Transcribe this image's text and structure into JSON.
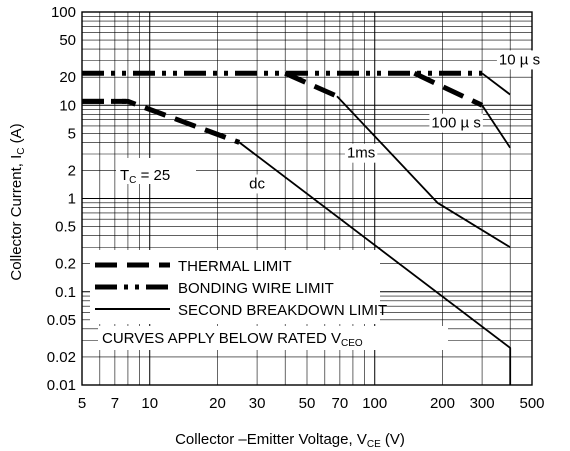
{
  "chart_data": {
    "type": "line",
    "xscale": "log",
    "yscale": "log",
    "xlim": [
      5,
      500
    ],
    "ylim": [
      0.01,
      100
    ],
    "xlabel": {
      "main": "Collector –Emitter Voltage, V",
      "sub": "CE",
      "unit": " (V)"
    },
    "ylabel": {
      "main": "Collector Current, I",
      "sub": "C",
      "unit": " (A)"
    },
    "x_ticks": [
      5,
      7,
      10,
      20,
      30,
      50,
      70,
      100,
      200,
      300,
      500
    ],
    "x_tick_labels": [
      "5",
      "7",
      "10",
      "20",
      "30",
      "50",
      "70",
      "100",
      "200",
      "300",
      "500"
    ],
    "y_ticks": [
      100,
      50,
      20,
      10,
      5,
      2,
      1,
      0.5,
      0.2,
      0.1,
      0.05,
      0.02,
      0.01
    ],
    "y_tick_labels": [
      "100",
      "50",
      "20",
      "10",
      "5",
      "2",
      "1",
      "0.5",
      "0.2",
      "0.1",
      "0.05",
      "0.02",
      "0.01"
    ],
    "grid": true,
    "series": [
      {
        "name": "THERMAL LIMIT",
        "style": "dashed",
        "segments": [
          {
            "x": [
              5,
              8,
              25
            ],
            "y": [
              11,
              11,
              4
            ]
          },
          {
            "x": [
              40,
              68
            ],
            "y": [
              22,
              12.5
            ]
          },
          {
            "x": [
              150,
              300
            ],
            "y": [
              22,
              10
            ]
          }
        ]
      },
      {
        "name": "BONDING WIRE LIMIT",
        "style": "dash-dot-dot",
        "segments": [
          {
            "x": [
              5,
              8
            ],
            "y": [
              11,
              11
            ]
          },
          {
            "x": [
              5,
              300
            ],
            "y": [
              22,
              22
            ]
          }
        ]
      },
      {
        "name": "SECOND BREAKDOWN LIMIT",
        "style": "solid",
        "segments": [
          {
            "x": [
              25,
              400,
              400
            ],
            "y": [
              4,
              0.025,
              0.01
            ]
          },
          {
            "x": [
              68,
              190,
              400
            ],
            "y": [
              12.5,
              0.9,
              0.3
            ]
          },
          {
            "x": [
              300,
              400
            ],
            "y": [
              10,
              3.5
            ]
          },
          {
            "x": [
              300,
              400
            ],
            "y": [
              22,
              13
            ]
          }
        ]
      }
    ],
    "annotations": [
      {
        "text": "10 µ s",
        "x": 440,
        "y": 31
      },
      {
        "text": "100 µ s",
        "x": 230,
        "y": 6.5
      },
      {
        "text": "1ms",
        "x": 87,
        "y": 3.1
      },
      {
        "text": "dc",
        "x": 30,
        "y": 1.45
      }
    ],
    "tc_label": {
      "main": "T",
      "sub": "C",
      "rest": " = 25"
    },
    "footnote": {
      "main": "CURVES APPLY BELOW RATED V",
      "sub": "CEO"
    }
  }
}
